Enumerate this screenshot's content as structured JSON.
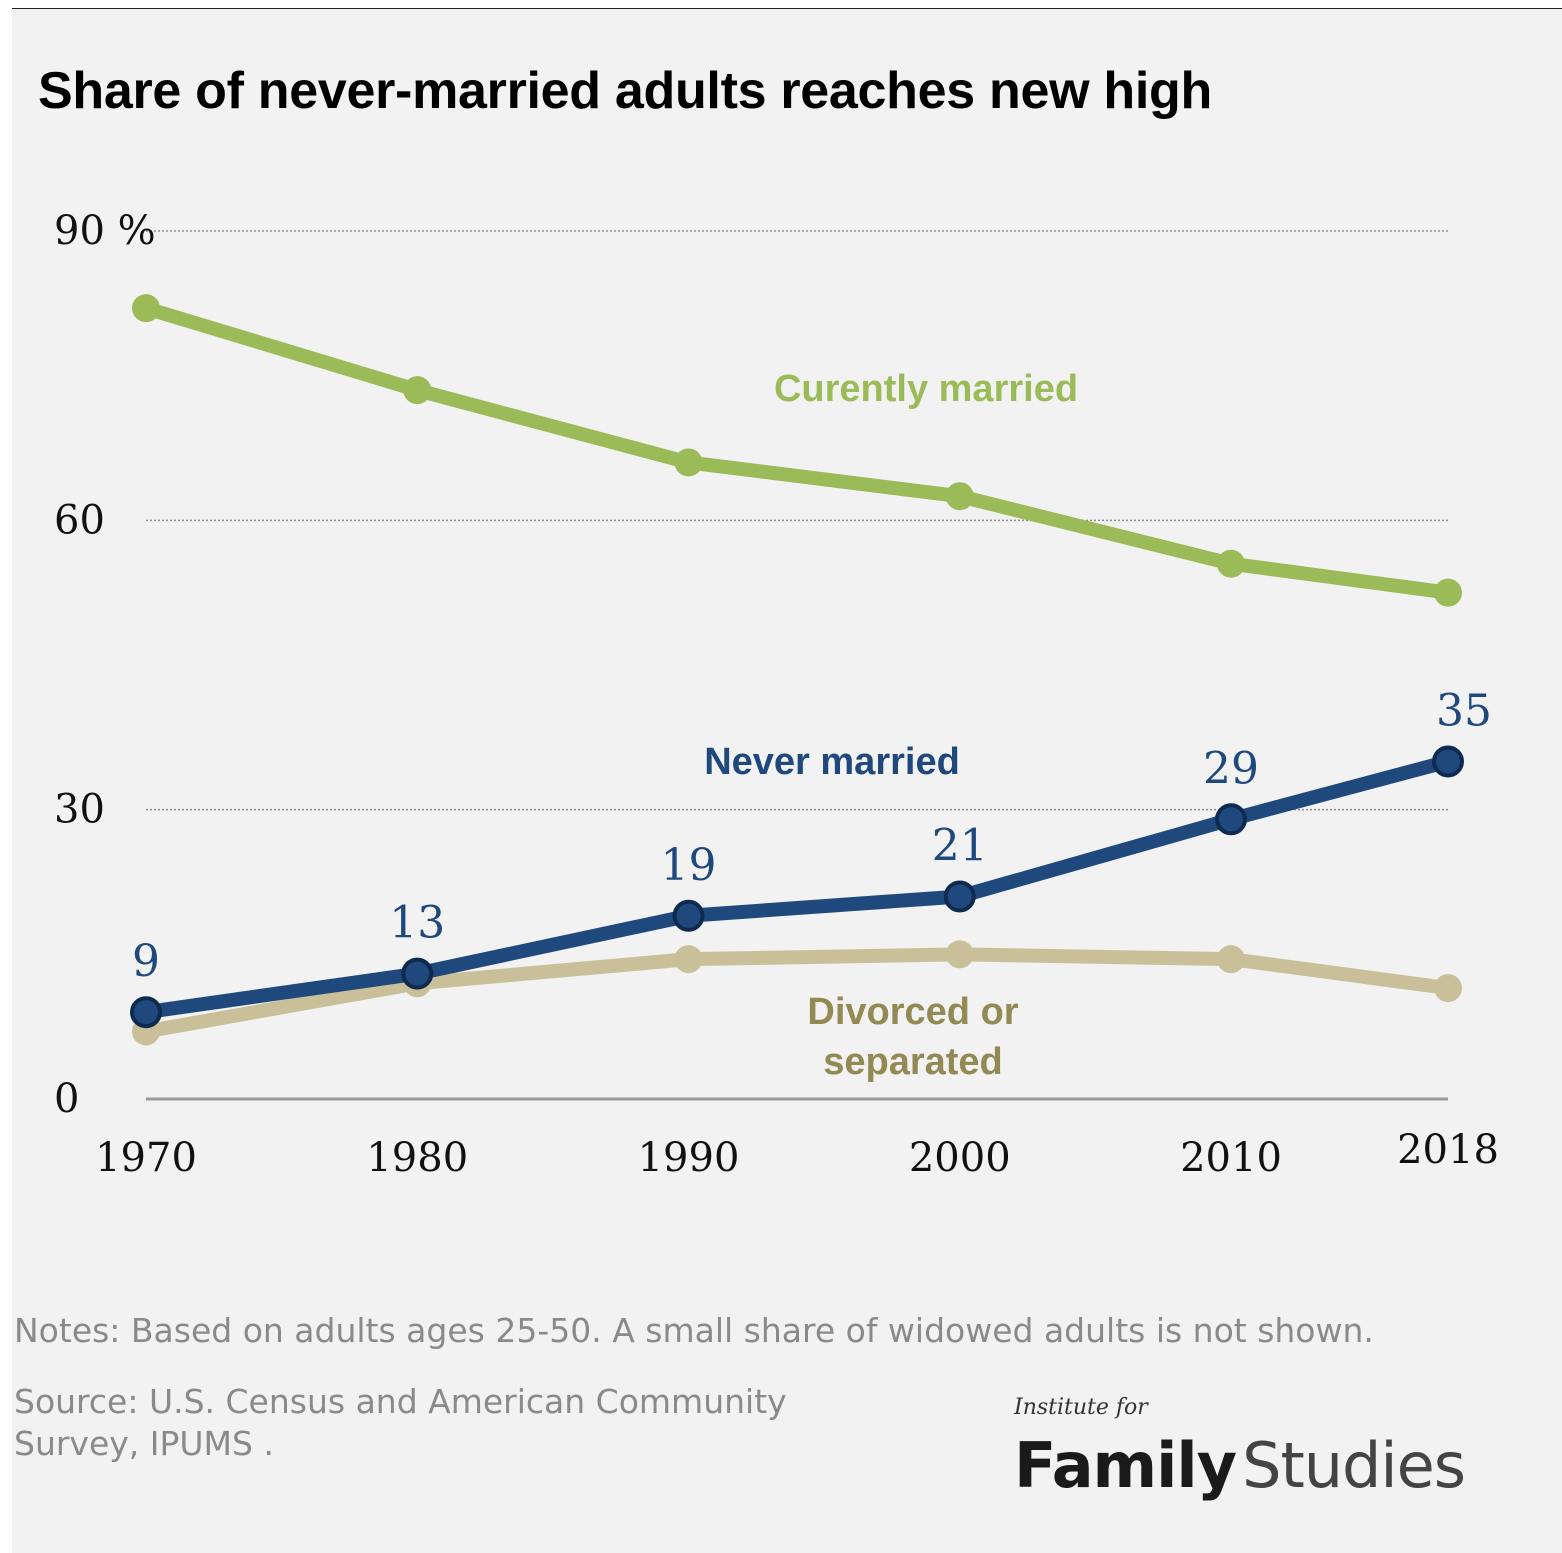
{
  "title": "Share of never-married adults reaches new high",
  "notes": "Notes: Based on adults ages 25-50. A small share of widowed adults is not shown.",
  "source": "Source: U.S. Census and American Community Survey, IPUMS .",
  "logo": {
    "small": "Institute for",
    "family": "Family",
    "studies": "Studies"
  },
  "chart_data": {
    "type": "line",
    "title": "Share of never-married adults reaches new high",
    "xlabel": "",
    "ylabel": "",
    "x": [
      1970,
      1980,
      1990,
      2000,
      2010,
      2018
    ],
    "x_tick_labels": [
      "1970",
      "1980",
      "1990",
      "2000",
      "2010",
      "2018"
    ],
    "y_ticks": [
      0,
      30,
      60,
      90
    ],
    "y_tick_labels": [
      "0",
      "30",
      "60",
      "90 %"
    ],
    "ylim": [
      0,
      90
    ],
    "grid": true,
    "series": [
      {
        "name": "Curently married",
        "name_lines": [
          "Curently married"
        ],
        "color": "#9bbb59",
        "values": [
          82,
          73.5,
          66,
          62.5,
          55.5,
          52.5
        ],
        "value_labels": [
          "",
          "",
          "",
          "",
          "",
          ""
        ]
      },
      {
        "name": "Never married",
        "name_lines": [
          "Never married"
        ],
        "color": "#1f497d",
        "values": [
          9,
          13,
          19,
          21,
          29,
          35
        ],
        "value_labels": [
          "9",
          "13",
          "19",
          "21",
          "29",
          "35"
        ]
      },
      {
        "name": "Divorced or separated",
        "name_lines": [
          "Divorced or",
          "separated"
        ],
        "color": "#c9c09a",
        "label_color": "#938953",
        "values": [
          7,
          12,
          14.5,
          15,
          14.5,
          11.5
        ],
        "value_labels": [
          "",
          "",
          "",
          "",
          "",
          ""
        ]
      }
    ]
  }
}
